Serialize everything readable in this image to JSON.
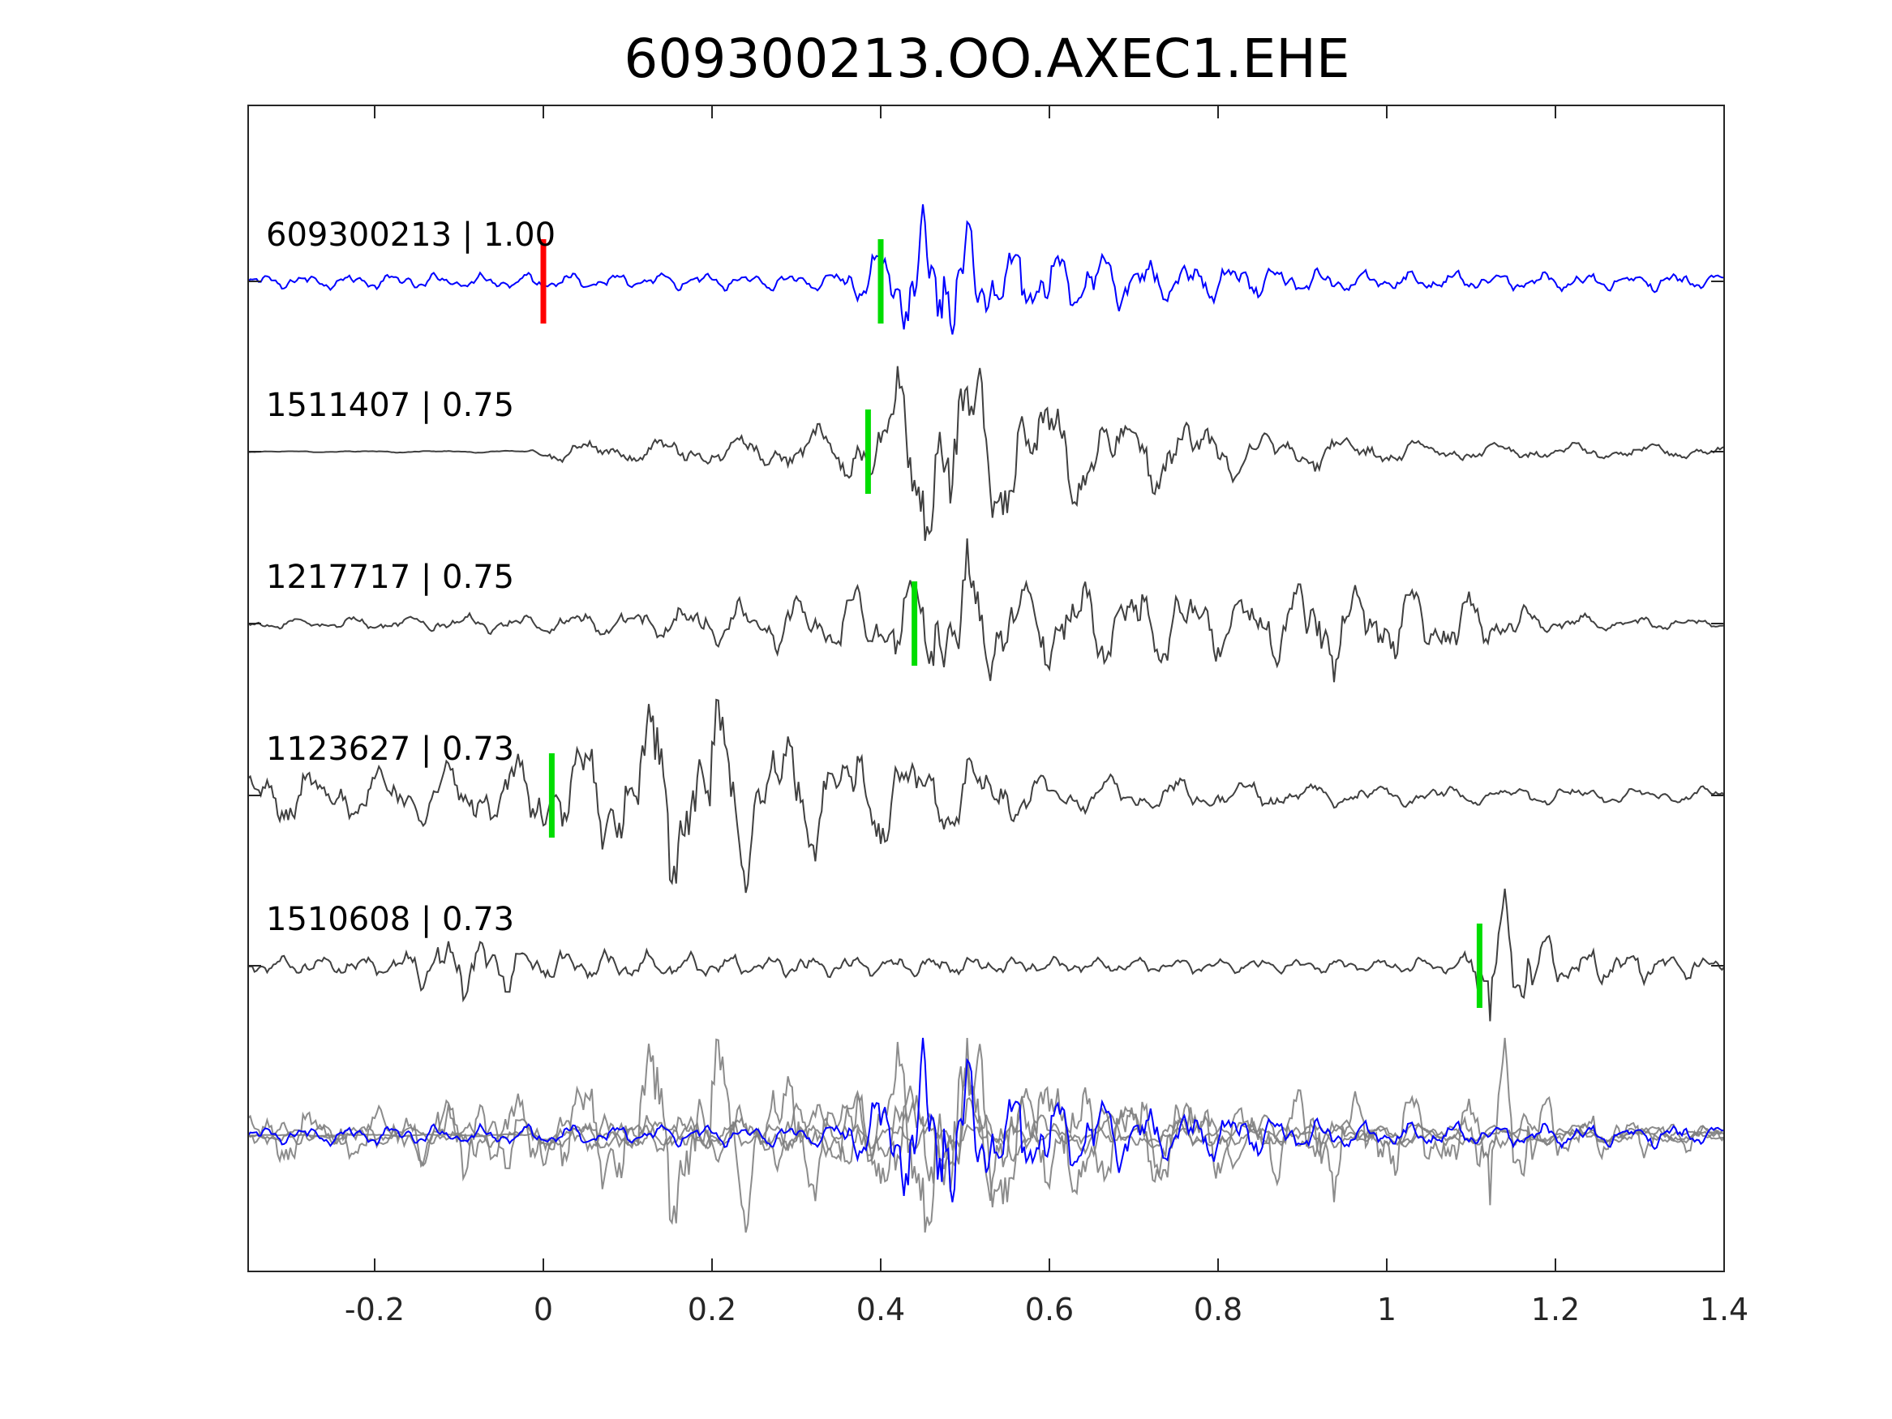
{
  "chart_data": {
    "type": "line",
    "title": "609300213.OO.AXEC1.EHE",
    "xlabel": "",
    "ylabel": "",
    "xlim": [
      -0.35,
      1.4
    ],
    "x_ticks": [
      -0.2,
      0,
      0.2,
      0.4,
      0.6,
      0.8,
      1,
      1.2,
      1.4
    ],
    "x_tick_labels": [
      "-0.2",
      "0",
      "0.2",
      "0.4",
      "0.6",
      "0.8",
      "1",
      "1.2",
      "1.4"
    ],
    "grid": false,
    "series": [
      {
        "name": "609300213 | 1.00",
        "event_id": "609300213",
        "correlation": "1.00",
        "color": "#0000ff",
        "origin_marker_x": 0.0,
        "origin_marker_color": "#ff0000",
        "pick_x": 0.4,
        "pick_color": "#00dd00",
        "envelope": [
          [
            -0.35,
            0.1
          ],
          [
            0.3,
            0.12
          ],
          [
            0.36,
            0.15
          ],
          [
            0.4,
            0.55
          ],
          [
            0.44,
            0.75
          ],
          [
            0.46,
            1.0
          ],
          [
            0.5,
            0.75
          ],
          [
            0.56,
            0.55
          ],
          [
            0.62,
            0.45
          ],
          [
            0.68,
            0.4
          ],
          [
            0.74,
            0.3
          ],
          [
            0.8,
            0.28
          ],
          [
            0.9,
            0.18
          ],
          [
            1.0,
            0.14
          ],
          [
            1.4,
            0.12
          ]
        ]
      },
      {
        "name": "1511407 | 0.75",
        "event_id": "1511407",
        "correlation": "0.75",
        "color": "#404040",
        "pick_x": 0.385,
        "pick_color": "#00dd00",
        "envelope": [
          [
            -0.35,
            0.005
          ],
          [
            -0.02,
            0.01
          ],
          [
            0.0,
            0.08
          ],
          [
            0.3,
            0.15
          ],
          [
            0.38,
            0.3
          ],
          [
            0.42,
            0.6
          ],
          [
            0.47,
            1.0
          ],
          [
            0.52,
            0.7
          ],
          [
            0.58,
            0.55
          ],
          [
            0.66,
            0.35
          ],
          [
            0.74,
            0.3
          ],
          [
            0.84,
            0.22
          ],
          [
            0.95,
            0.12
          ],
          [
            1.1,
            0.08
          ],
          [
            1.4,
            0.06
          ]
        ]
      },
      {
        "name": "1217717 | 0.75",
        "event_id": "1217717",
        "correlation": "0.75",
        "color": "#404040",
        "pick_x": 0.44,
        "pick_color": "#00dd00",
        "envelope": [
          [
            -0.35,
            0.06
          ],
          [
            0.0,
            0.12
          ],
          [
            0.15,
            0.2
          ],
          [
            0.25,
            0.3
          ],
          [
            0.35,
            0.4
          ],
          [
            0.44,
            0.6
          ],
          [
            0.48,
            1.0
          ],
          [
            0.55,
            0.6
          ],
          [
            0.65,
            0.55
          ],
          [
            0.75,
            0.5
          ],
          [
            0.85,
            0.35
          ],
          [
            0.92,
            0.75
          ],
          [
            0.98,
            0.45
          ],
          [
            1.08,
            0.45
          ],
          [
            1.2,
            0.12
          ],
          [
            1.4,
            0.05
          ]
        ]
      },
      {
        "name": "1123627 | 0.73",
        "event_id": "1123627",
        "correlation": "0.73",
        "color": "#404040",
        "pick_x": 0.01,
        "pick_color": "#00dd00",
        "envelope": [
          [
            -0.35,
            0.28
          ],
          [
            -0.05,
            0.3
          ],
          [
            0.02,
            0.5
          ],
          [
            0.07,
            0.65
          ],
          [
            0.13,
            1.0
          ],
          [
            0.21,
            0.95
          ],
          [
            0.3,
            0.7
          ],
          [
            0.36,
            0.55
          ],
          [
            0.5,
            0.4
          ],
          [
            0.6,
            0.2
          ],
          [
            0.8,
            0.15
          ],
          [
            1.0,
            0.1
          ],
          [
            1.4,
            0.08
          ]
        ]
      },
      {
        "name": "1510608 | 0.73",
        "event_id": "1510608",
        "correlation": "0.73",
        "color": "#404040",
        "pick_x": 1.11,
        "pick_color": "#00dd00",
        "envelope": [
          [
            -0.35,
            0.1
          ],
          [
            -0.18,
            0.12
          ],
          [
            -0.12,
            0.35
          ],
          [
            -0.04,
            0.4
          ],
          [
            0.0,
            0.2
          ],
          [
            0.2,
            0.14
          ],
          [
            0.6,
            0.1
          ],
          [
            1.0,
            0.08
          ],
          [
            1.09,
            0.12
          ],
          [
            1.12,
            0.85
          ],
          [
            1.135,
            1.0
          ],
          [
            1.16,
            0.55
          ],
          [
            1.22,
            0.25
          ],
          [
            1.4,
            0.12
          ]
        ]
      }
    ],
    "overlay": {
      "description_visible": false,
      "reference_color": "#0000ff",
      "others_color": "#808080"
    }
  }
}
